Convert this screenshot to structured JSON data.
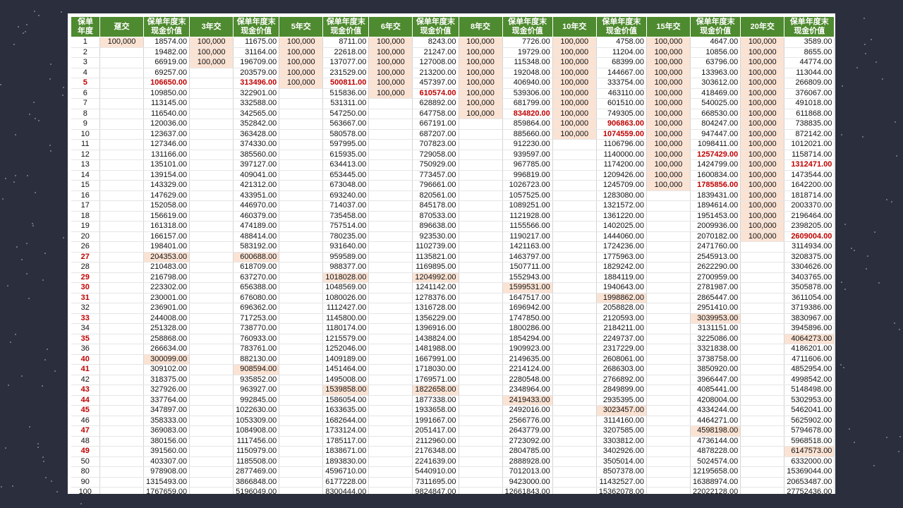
{
  "colors": {
    "header_bg": "#4e8a2f",
    "highlight": "#fbe3d4",
    "red_text": "#c00000",
    "background": "#2b2f3d"
  },
  "headers": {
    "year": "保单\n年度",
    "value": "保单年度末\n现金价值",
    "pay": [
      "趸交",
      "3年交",
      "5年交",
      "6年交",
      "8年交",
      "10年交",
      "15年交",
      "20年交"
    ]
  },
  "premium": "100,000",
  "plans": [
    {
      "id": "single",
      "years": 1
    },
    {
      "id": "3yr",
      "years": 3
    },
    {
      "id": "5yr",
      "years": 5
    },
    {
      "id": "6yr",
      "years": 6
    },
    {
      "id": "8yr",
      "years": 8
    },
    {
      "id": "10yr",
      "years": 10
    },
    {
      "id": "15yr",
      "years": 15
    },
    {
      "id": "20yr",
      "years": 20
    }
  ],
  "rows": [
    {
      "year": "1",
      "vals": [
        "18574.00",
        "11675.00",
        "8711.00",
        "8243.00",
        "7726.00",
        "4758.00",
        "4647.00",
        "3589.00"
      ]
    },
    {
      "year": "2",
      "vals": [
        "19482.00",
        "31164.00",
        "22618.00",
        "21247.00",
        "19729.00",
        "11204.00",
        "10856.00",
        "8655.00"
      ]
    },
    {
      "year": "3",
      "vals": [
        "66919.00",
        "196709.00",
        "137077.00",
        "127008.00",
        "115348.00",
        "68399.00",
        "63796.00",
        "44774.00"
      ]
    },
    {
      "year": "4",
      "vals": [
        "69257.00",
        "203579.00",
        "231529.00",
        "213200.00",
        "192048.00",
        "144667.00",
        "133963.00",
        "113044.00"
      ]
    },
    {
      "year": "5",
      "red_year": true,
      "vals": [
        "106650.00",
        "313496.00",
        "500811.00",
        "457397.00",
        "406940.00",
        "333754.00",
        "303612.00",
        "266809.00"
      ],
      "red": [
        0,
        1,
        2
      ]
    },
    {
      "year": "6",
      "vals": [
        "109850.00",
        "322901.00",
        "515836.00",
        "610574.00",
        "539306.00",
        "463110.00",
        "418469.00",
        "376067.00"
      ],
      "red": [
        3
      ]
    },
    {
      "year": "7",
      "vals": [
        "113145.00",
        "332588.00",
        "531311.00",
        "628892.00",
        "681799.00",
        "601510.00",
        "540025.00",
        "491018.00"
      ]
    },
    {
      "year": "8",
      "vals": [
        "116540.00",
        "342565.00",
        "547250.00",
        "647758.00",
        "834820.00",
        "749305.00",
        "668530.00",
        "611868.00"
      ],
      "red": [
        4
      ]
    },
    {
      "year": "9",
      "vals": [
        "120036.00",
        "352842.00",
        "563667.00",
        "667191.00",
        "859864.00",
        "906863.00",
        "804247.00",
        "738835.00"
      ],
      "red": [
        5
      ]
    },
    {
      "year": "10",
      "vals": [
        "123637.00",
        "363428.00",
        "580578.00",
        "687207.00",
        "885660.00",
        "1074559.00",
        "947447.00",
        "872142.00"
      ],
      "red": [
        5
      ]
    },
    {
      "year": "11",
      "vals": [
        "127346.00",
        "374330.00",
        "597995.00",
        "707823.00",
        "912230.00",
        "1106796.00",
        "1098411.00",
        "1012021.00"
      ]
    },
    {
      "year": "12",
      "vals": [
        "131166.00",
        "385560.00",
        "615935.00",
        "729058.00",
        "939597.00",
        "1140000.00",
        "1257429.00",
        "1158714.00"
      ],
      "red": [
        6
      ]
    },
    {
      "year": "13",
      "vals": [
        "135101.00",
        "397127.00",
        "634413.00",
        "750929.00",
        "967785.00",
        "1174200.00",
        "1424799.00",
        "1312471.00"
      ],
      "red": [
        7
      ]
    },
    {
      "year": "14",
      "vals": [
        "139154.00",
        "409041.00",
        "653445.00",
        "773457.00",
        "996819.00",
        "1209426.00",
        "1600834.00",
        "1473544.00"
      ]
    },
    {
      "year": "15",
      "vals": [
        "143329.00",
        "421312.00",
        "673048.00",
        "796661.00",
        "1026723.00",
        "1245709.00",
        "1785856.00",
        "1642200.00"
      ],
      "red": [
        6
      ]
    },
    {
      "year": "16",
      "vals": [
        "147629.00",
        "433951.00",
        "693240.00",
        "820561.00",
        "1057525.00",
        "1283080.00",
        "1839431.00",
        "1818714.00"
      ]
    },
    {
      "year": "17",
      "vals": [
        "152058.00",
        "446970.00",
        "714037.00",
        "845178.00",
        "1089251.00",
        "1321572.00",
        "1894614.00",
        "2003370.00"
      ]
    },
    {
      "year": "18",
      "vals": [
        "156619.00",
        "460379.00",
        "735458.00",
        "870533.00",
        "1121928.00",
        "1361220.00",
        "1951453.00",
        "2196464.00"
      ]
    },
    {
      "year": "19",
      "vals": [
        "161318.00",
        "474189.00",
        "757514.00",
        "896638.00",
        "1155566.00",
        "1402025.00",
        "2009936.00",
        "2398205.00"
      ]
    },
    {
      "year": "20",
      "vals": [
        "166157.00",
        "488414.00",
        "780235.00",
        "923530.00",
        "1190217.00",
        "1444060.00",
        "2070182.00",
        "2609004.00"
      ],
      "red": [
        7
      ]
    },
    {
      "year": "26",
      "vals": [
        "198401.00",
        "583192.00",
        "931640.00",
        "1102739.00",
        "1421163.00",
        "1724236.00",
        "2471760.00",
        "3114934.00"
      ]
    },
    {
      "year": "27",
      "red_year": true,
      "vals": [
        "204353.00",
        "600688.00",
        "959589.00",
        "1135821.00",
        "1463797.00",
        "1775963.00",
        "2545913.00",
        "3208375.00"
      ],
      "hl": [
        0,
        1
      ]
    },
    {
      "year": "28",
      "vals": [
        "210483.00",
        "618709.00",
        "988377.00",
        "1169895.00",
        "1507711.00",
        "1829242.00",
        "2622290.00",
        "3304626.00"
      ]
    },
    {
      "year": "29",
      "red_year": true,
      "vals": [
        "216798.00",
        "637270.00",
        "1018028.00",
        "1204992.00",
        "1552943.00",
        "1884119.00",
        "2700959.00",
        "3403765.00"
      ],
      "hl": [
        2,
        3
      ]
    },
    {
      "year": "30",
      "red_year": true,
      "vals": [
        "223302.00",
        "656388.00",
        "1048569.00",
        "1241142.00",
        "1599531.00",
        "1940643.00",
        "2781987.00",
        "3505878.00"
      ],
      "hl": [
        4
      ]
    },
    {
      "year": "31",
      "red_year": true,
      "vals": [
        "230001.00",
        "676080.00",
        "1080026.00",
        "1278376.00",
        "1647517.00",
        "1998862.00",
        "2865447.00",
        "3611054.00"
      ],
      "hl": [
        5
      ]
    },
    {
      "year": "32",
      "vals": [
        "236901.00",
        "696362.00",
        "1112427.00",
        "1316728.00",
        "1696942.00",
        "2058828.00",
        "2951410.00",
        "3719386.00"
      ]
    },
    {
      "year": "33",
      "red_year": true,
      "vals": [
        "244008.00",
        "717253.00",
        "1145800.00",
        "1356229.00",
        "1747850.00",
        "2120593.00",
        "3039953.00",
        "3830967.00"
      ],
      "hl": [
        6
      ]
    },
    {
      "year": "34",
      "vals": [
        "251328.00",
        "738770.00",
        "1180174.00",
        "1396916.00",
        "1800286.00",
        "2184211.00",
        "3131151.00",
        "3945896.00"
      ]
    },
    {
      "year": "35",
      "red_year": true,
      "vals": [
        "258868.00",
        "760933.00",
        "1215579.00",
        "1438824.00",
        "1854294.00",
        "2249737.00",
        "3225086.00",
        "4064273.00"
      ],
      "hl": [
        7
      ]
    },
    {
      "year": "36",
      "vals": [
        "266634.00",
        "783761.00",
        "1252046.00",
        "1481988.00",
        "1909923.00",
        "2317229.00",
        "3321838.00",
        "4186201.00"
      ]
    },
    {
      "year": "40",
      "red_year": true,
      "vals": [
        "300099.00",
        "882130.00",
        "1409189.00",
        "1667991.00",
        "2149635.00",
        "2608061.00",
        "3738758.00",
        "4711606.00"
      ],
      "hl": [
        0
      ]
    },
    {
      "year": "41",
      "red_year": true,
      "vals": [
        "309102.00",
        "908594.00",
        "1451464.00",
        "1718030.00",
        "2214124.00",
        "2686303.00",
        "3850920.00",
        "4852954.00"
      ],
      "hl": [
        1
      ]
    },
    {
      "year": "42",
      "vals": [
        "318375.00",
        "935852.00",
        "1495008.00",
        "1769571.00",
        "2280548.00",
        "2766892.00",
        "3966447.00",
        "4998542.00"
      ]
    },
    {
      "year": "43",
      "red_year": true,
      "vals": [
        "327926.00",
        "963927.00",
        "1539858.00",
        "1822658.00",
        "2348964.00",
        "2849899.00",
        "4085441.00",
        "5148498.00"
      ],
      "hl": [
        2,
        3
      ]
    },
    {
      "year": "44",
      "red_year": true,
      "vals": [
        "337764.00",
        "992845.00",
        "1586054.00",
        "1877338.00",
        "2419433.00",
        "2935395.00",
        "4208004.00",
        "5302953.00"
      ],
      "hl": [
        4
      ]
    },
    {
      "year": "45",
      "red_year": true,
      "vals": [
        "347897.00",
        "1022630.00",
        "1633635.00",
        "1933658.00",
        "2492016.00",
        "3023457.00",
        "4334244.00",
        "5462041.00"
      ],
      "hl": [
        5
      ]
    },
    {
      "year": "46",
      "vals": [
        "358333.00",
        "1053309.00",
        "1682644.00",
        "1991667.00",
        "2566776.00",
        "3114160.00",
        "4464271.00",
        "5625902.00"
      ]
    },
    {
      "year": "47",
      "red_year": true,
      "vals": [
        "369083.00",
        "1084908.00",
        "1733124.00",
        "2051417.00",
        "2643779.00",
        "3207585.00",
        "4598198.00",
        "5794678.00"
      ],
      "hl": [
        6
      ]
    },
    {
      "year": "48",
      "vals": [
        "380156.00",
        "1117456.00",
        "1785117.00",
        "2112960.00",
        "2723092.00",
        "3303812.00",
        "4736144.00",
        "5968518.00"
      ]
    },
    {
      "year": "49",
      "red_year": true,
      "vals": [
        "391560.00",
        "1150979.00",
        "1838671.00",
        "2176348.00",
        "2804785.00",
        "3402926.00",
        "4878228.00",
        "6147573.00"
      ],
      "hl": [
        7
      ]
    },
    {
      "year": "50",
      "vals": [
        "403307.00",
        "1185508.00",
        "1893830.00",
        "2241639.00",
        "2888928.00",
        "3505014.00",
        "5024574.00",
        "6332000.00"
      ]
    },
    {
      "year": "80",
      "vals": [
        "978908.00",
        "2877469.00",
        "4596710.00",
        "5440910.00",
        "7012013.00",
        "8507378.00",
        "12195658.00",
        "15369044.00"
      ]
    },
    {
      "year": "90",
      "vals": [
        "1315493.00",
        "3866848.00",
        "6177228.00",
        "7311695.00",
        "9423000.00",
        "11432527.00",
        "16388974.00",
        "20653487.00"
      ]
    },
    {
      "year": "100",
      "vals": [
        "1767659.00",
        "5196049.00",
        "8300444.00",
        "9824847.00",
        "12661843.00",
        "15362078.00",
        "22022128.00",
        "27752436.00"
      ]
    }
  ]
}
